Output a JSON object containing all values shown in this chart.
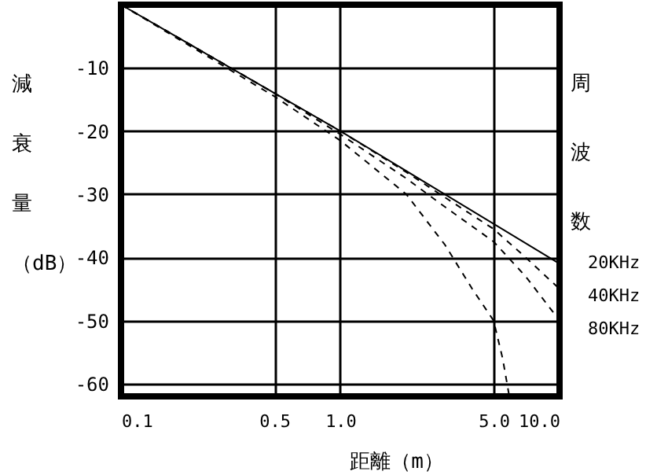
{
  "chart_data": {
    "type": "line",
    "xlabel": "距離（m）",
    "ylabel": "減衰量（dB）",
    "legend_title": "周波数",
    "legend": "right",
    "log": "x",
    "grid": true,
    "marker": "none",
    "xlim": [
      0.1,
      10
    ],
    "xticks": [
      {
        "value": 0.1,
        "label": "0.1"
      },
      {
        "value": 0.5,
        "label": "0.5"
      },
      {
        "value": 1,
        "label": "1.0"
      },
      {
        "value": 5,
        "label": "5.0"
      },
      {
        "value": 10,
        "label": "10.0"
      }
    ],
    "ylim": [
      -62,
      0
    ],
    "yticks": [
      -10,
      -20,
      -30,
      -40,
      -50,
      -60
    ],
    "series": [
      {
        "color": "#000000",
        "line_style": "solid",
        "x": [
          0.1,
          1,
          10
        ],
        "values": [
          0,
          -20,
          -41
        ]
      },
      {
        "name": "20KHz",
        "color": "#000000",
        "line_style": "dashed",
        "x": [
          0.1,
          0.5,
          1,
          2,
          3,
          5,
          7,
          10
        ],
        "values": [
          0,
          -14,
          -20,
          -26.5,
          -30.5,
          -35.5,
          -40,
          -45
        ]
      },
      {
        "name": "40KHz",
        "color": "#000000",
        "line_style": "dashed",
        "x": [
          0.1,
          0.5,
          1,
          2,
          3,
          5,
          7,
          10
        ],
        "values": [
          0,
          -14,
          -20.5,
          -27.5,
          -32,
          -37.5,
          -43,
          -50
        ]
      },
      {
        "name": "80KHz",
        "color": "#000000",
        "line_style": "dashed",
        "x": [
          0.1,
          0.5,
          1,
          2,
          3,
          4,
          5,
          5.5,
          5.9
        ],
        "values": [
          0,
          -14.5,
          -21.5,
          -30,
          -38,
          -45,
          -50,
          -56,
          -62
        ]
      }
    ]
  }
}
